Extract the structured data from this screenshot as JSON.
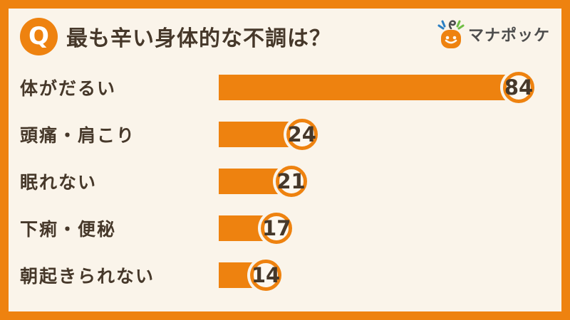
{
  "header": {
    "badge": "Q",
    "title": "最も辛い身体的な不調は？"
  },
  "logo": {
    "text": "マナポッケ",
    "icon": "smiley-pocket-mascot-icon"
  },
  "colors": {
    "accent_orange": "#EE820F",
    "background_cream": "#FAF4EA",
    "badge_fill": "#FDF8F0",
    "text_brown": "#46382A",
    "logo_gray": "#4D4D4D",
    "spark_blue": "#2B7FC3",
    "spark_green": "#6FBE44"
  },
  "chart_data": {
    "type": "bar",
    "orientation": "horizontal",
    "title": "最も辛い身体的な不調は？",
    "categories": [
      "体がだるい",
      "頭痛・肩こり",
      "眠れない",
      "下痢・便秘",
      "朝起きられない"
    ],
    "values": [
      84,
      24,
      21,
      17,
      14
    ],
    "value_labels": [
      "84",
      "24",
      "21",
      "17",
      "14"
    ],
    "xlim": [
      0,
      84
    ],
    "bar_color": "#EE820F",
    "value_label_style": "circled-badge-at-bar-end",
    "legend": false,
    "gridlines": false,
    "axis_ticks": false
  }
}
